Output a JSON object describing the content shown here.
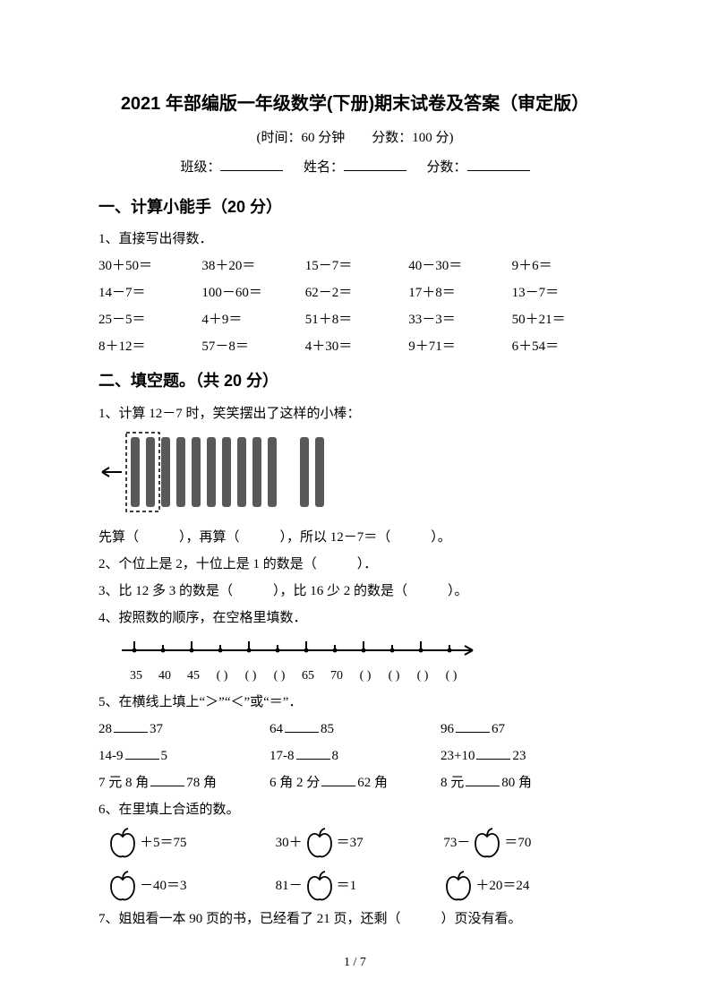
{
  "header": {
    "title": "2021 年部编版一年级数学(下册)期末试卷及答案（审定版）",
    "subtitle": "(时间：60 分钟　　分数：100 分)",
    "class_label": "班级：",
    "name_label": "姓名：",
    "score_label": "分数："
  },
  "sections": {
    "s1": {
      "head": "一、计算小能手（20 分）"
    },
    "s2": {
      "head": "二、填空题。（共 20 分）"
    }
  },
  "s1q1": {
    "prompt": "1、直接写出得数．",
    "cells": [
      "30＋50＝",
      "38＋20＝",
      "15－7＝",
      "40－30＝",
      "9＋6＝",
      "14－7＝",
      "100－60＝",
      "62－2＝",
      "17＋8＝",
      "13－7＝",
      "25－5＝",
      "4＋9＝",
      "51＋8＝",
      "33－3＝",
      "50＋21＝",
      "8＋12＝",
      "57－8＝",
      "4＋30＝",
      "9＋71＝",
      "6＋54＝"
    ]
  },
  "s2q1": {
    "line1": "1、计算 12－7 时，笑笑摆出了这样的小棒：",
    "line2": "先算（　　　），再算（　　　），所以 12－7＝（　　　）。"
  },
  "sticks": {
    "dashed_count": 2,
    "solid_in_ten_count": 8,
    "extra_count": 2,
    "stick_color": "#595959",
    "stick_width": 10,
    "stick_height": 78,
    "gap": 7,
    "dashed_border": "#000000",
    "arrow_color": "#000000"
  },
  "s2q2": "2、个位上是 2，十位上是 1 的数是（　　　）．",
  "s2q3": "3、比 12 多 3 的数是（　　　），比 16 少 2 的数是（　　　）。",
  "s2q4": "4、按照数的顺序，在空格里填数．",
  "numline": {
    "start": 35,
    "step": 5,
    "count": 12,
    "ticks_color": "#000000",
    "arrow": true
  },
  "numline_labels": [
    "35",
    "40",
    "45",
    "(  )",
    "(  )",
    "(  )",
    "65",
    "70",
    "(  )",
    "(  )",
    "(  )",
    "(  )"
  ],
  "s2q5": {
    "prompt": "5、在横线上填上“＞”“＜”或“＝”．",
    "rows": [
      [
        {
          "l": "28",
          "r": "37"
        },
        {
          "l": "64",
          "r": "85"
        },
        {
          "l": "96",
          "r": "67"
        }
      ],
      [
        {
          "l": "14-9",
          "r": "5"
        },
        {
          "l": "17-8",
          "r": "8"
        },
        {
          "l": "23+10",
          "r": "23"
        }
      ],
      [
        {
          "l": "7 元 8 角",
          "r": "78 角"
        },
        {
          "l": "6 角 2 分",
          "r": "62 角"
        },
        {
          "l": "8 元",
          "r": "80 角"
        }
      ]
    ]
  },
  "s2q6": {
    "prompt": "6、在里填上合适的数。",
    "apple": {
      "stroke": "#000000",
      "fill": "#ffffff",
      "size": 30
    },
    "eqs": [
      {
        "pre": "",
        "post": "＋5＝75"
      },
      {
        "pre": "30＋",
        "post": "＝37"
      },
      {
        "pre": "73－",
        "post": "＝70"
      },
      {
        "pre": "",
        "post": "－40＝3"
      },
      {
        "pre": "81－",
        "post": "＝1"
      },
      {
        "pre": "",
        "post": "＋20＝24"
      }
    ]
  },
  "s2q7": "7、姐姐看一本 90 页的书，已经看了 21 页，还剩（　　　）页没有看。",
  "pager": "1  /  7"
}
